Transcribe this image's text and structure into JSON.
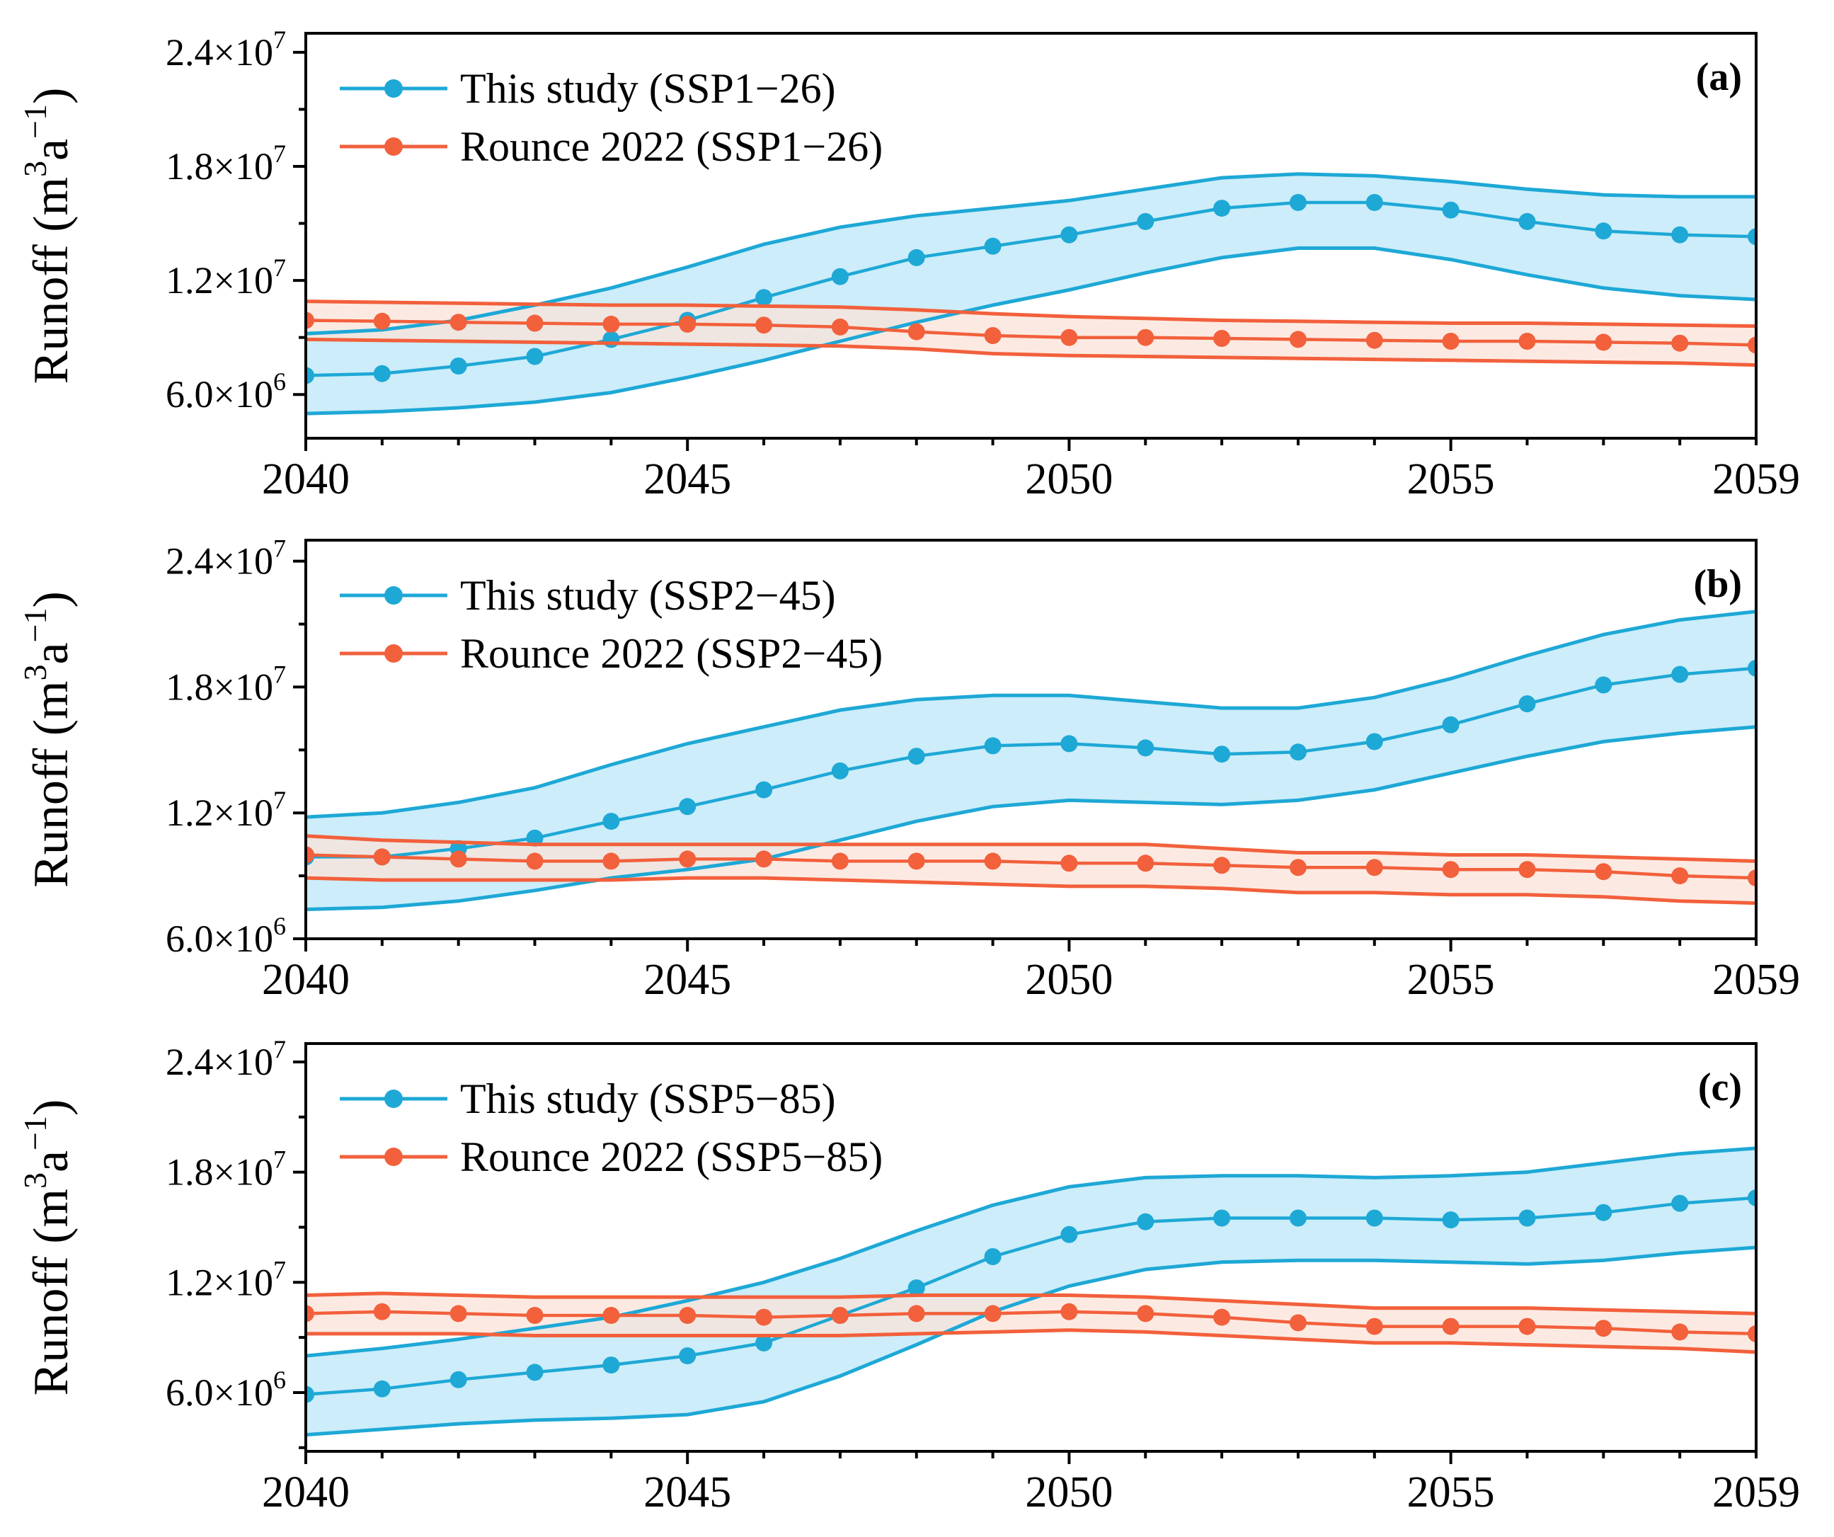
{
  "chart_data": [
    {
      "type": "line",
      "panel_label": "(a)",
      "ylabel": "Runoff",
      "ylabel_unit_base": "m",
      "ylabel_unit_exp": "3",
      "ylabel_unit_base2": "a",
      "ylabel_unit_exp2": "−1",
      "xlim": [
        2040,
        2059
      ],
      "ylim": [
        3700000,
        25000000
      ],
      "yticks": [
        {
          "value": 6000000,
          "mant": "6.0×10",
          "exp": "6"
        },
        {
          "value": 12000000,
          "mant": "1.2×10",
          "exp": "7"
        },
        {
          "value": 18000000,
          "mant": "1.8×10",
          "exp": "7"
        },
        {
          "value": 24000000,
          "mant": "2.4×10",
          "exp": "7"
        }
      ],
      "xticks": [
        2040,
        2045,
        2050,
        2055,
        2059
      ],
      "legend_position": "top-left",
      "series": [
        {
          "name": "This study (SSP1−26)",
          "color": "#1ea8d6",
          "fill": "#c9ecf9",
          "x": [
            2040,
            2041,
            2042,
            2043,
            2044,
            2045,
            2046,
            2047,
            2048,
            2049,
            2050,
            2051,
            2052,
            2053,
            2054,
            2055,
            2056,
            2057,
            2058,
            2059
          ],
          "y": [
            7000000,
            7100000,
            7500000,
            8000000,
            8900000,
            9900000,
            11100000,
            12200000,
            13200000,
            13800000,
            14400000,
            15100000,
            15800000,
            16100000,
            16100000,
            15700000,
            15100000,
            14600000,
            14400000,
            14300000
          ],
          "upper": [
            9200000,
            9400000,
            9900000,
            10700000,
            11600000,
            12700000,
            13900000,
            14800000,
            15400000,
            15800000,
            16200000,
            16800000,
            17400000,
            17600000,
            17500000,
            17200000,
            16800000,
            16500000,
            16400000,
            16400000
          ],
          "lower": [
            5000000,
            5100000,
            5300000,
            5600000,
            6100000,
            6900000,
            7800000,
            8800000,
            9800000,
            10700000,
            11500000,
            12400000,
            13200000,
            13700000,
            13700000,
            13100000,
            12300000,
            11600000,
            11200000,
            11000000
          ]
        },
        {
          "name": "Rounce 2022 (SSP1−26)",
          "color": "#f2603c",
          "fill": "#fbe3d8",
          "x": [
            2040,
            2041,
            2042,
            2043,
            2044,
            2045,
            2046,
            2047,
            2048,
            2049,
            2050,
            2051,
            2052,
            2053,
            2054,
            2055,
            2056,
            2057,
            2058,
            2059
          ],
          "y": [
            9900000,
            9850000,
            9800000,
            9750000,
            9700000,
            9700000,
            9650000,
            9550000,
            9300000,
            9100000,
            9000000,
            9000000,
            8950000,
            8900000,
            8850000,
            8800000,
            8800000,
            8750000,
            8700000,
            8600000
          ],
          "upper": [
            10900000,
            10850000,
            10800000,
            10750000,
            10700000,
            10700000,
            10650000,
            10600000,
            10450000,
            10250000,
            10100000,
            10000000,
            9900000,
            9850000,
            9800000,
            9750000,
            9750000,
            9700000,
            9650000,
            9600000
          ],
          "lower": [
            8900000,
            8850000,
            8800000,
            8750000,
            8700000,
            8650000,
            8600000,
            8550000,
            8400000,
            8150000,
            8050000,
            8000000,
            7950000,
            7900000,
            7850000,
            7800000,
            7750000,
            7700000,
            7650000,
            7550000
          ]
        }
      ]
    },
    {
      "type": "line",
      "panel_label": "(b)",
      "ylabel": "Runoff",
      "ylabel_unit_base": "m",
      "ylabel_unit_exp": "3",
      "ylabel_unit_base2": "a",
      "ylabel_unit_exp2": "−1",
      "xlim": [
        2040,
        2059
      ],
      "ylim": [
        6000000,
        25000000
      ],
      "yticks": [
        {
          "value": 6000000,
          "mant": "6.0×10",
          "exp": "6"
        },
        {
          "value": 12000000,
          "mant": "1.2×10",
          "exp": "7"
        },
        {
          "value": 18000000,
          "mant": "1.8×10",
          "exp": "7"
        },
        {
          "value": 24000000,
          "mant": "2.4×10",
          "exp": "7"
        }
      ],
      "xticks": [
        2040,
        2045,
        2050,
        2055,
        2059
      ],
      "legend_position": "top-left",
      "series": [
        {
          "name": "This study (SSP2−45)",
          "color": "#1ea8d6",
          "fill": "#c9ecf9",
          "x": [
            2040,
            2041,
            2042,
            2043,
            2044,
            2045,
            2046,
            2047,
            2048,
            2049,
            2050,
            2051,
            2052,
            2053,
            2054,
            2055,
            2056,
            2057,
            2058,
            2059
          ],
          "y": [
            9900000,
            9900000,
            10300000,
            10800000,
            11600000,
            12300000,
            13100000,
            14000000,
            14700000,
            15200000,
            15300000,
            15100000,
            14800000,
            14900000,
            15400000,
            16200000,
            17200000,
            18100000,
            18600000,
            18900000
          ],
          "upper": [
            11800000,
            12000000,
            12500000,
            13200000,
            14300000,
            15300000,
            16100000,
            16900000,
            17400000,
            17600000,
            17600000,
            17300000,
            17000000,
            17000000,
            17500000,
            18400000,
            19500000,
            20500000,
            21200000,
            21600000
          ],
          "lower": [
            7400000,
            7500000,
            7800000,
            8300000,
            8900000,
            9300000,
            9800000,
            10700000,
            11600000,
            12300000,
            12600000,
            12500000,
            12400000,
            12600000,
            13100000,
            13900000,
            14700000,
            15400000,
            15800000,
            16100000
          ]
        },
        {
          "name": "Rounce 2022 (SSP2−45)",
          "color": "#f2603c",
          "fill": "#fbe3d8",
          "x": [
            2040,
            2041,
            2042,
            2043,
            2044,
            2045,
            2046,
            2047,
            2048,
            2049,
            2050,
            2051,
            2052,
            2053,
            2054,
            2055,
            2056,
            2057,
            2058,
            2059
          ],
          "y": [
            10000000,
            9900000,
            9800000,
            9700000,
            9700000,
            9800000,
            9800000,
            9700000,
            9700000,
            9700000,
            9600000,
            9600000,
            9500000,
            9400000,
            9400000,
            9300000,
            9300000,
            9200000,
            9000000,
            8900000
          ],
          "upper": [
            10900000,
            10700000,
            10600000,
            10500000,
            10500000,
            10500000,
            10500000,
            10500000,
            10500000,
            10500000,
            10500000,
            10500000,
            10300000,
            10100000,
            10100000,
            10000000,
            10000000,
            9900000,
            9800000,
            9700000
          ],
          "lower": [
            8900000,
            8800000,
            8800000,
            8800000,
            8800000,
            8900000,
            8900000,
            8800000,
            8700000,
            8600000,
            8500000,
            8500000,
            8400000,
            8200000,
            8200000,
            8100000,
            8100000,
            8000000,
            7800000,
            7700000
          ]
        }
      ]
    },
    {
      "type": "line",
      "panel_label": "(c)",
      "ylabel": "Runoff",
      "ylabel_unit_base": "m",
      "ylabel_unit_exp": "3",
      "ylabel_unit_base2": "a",
      "ylabel_unit_exp2": "−1",
      "xlim": [
        2040,
        2059
      ],
      "ylim": [
        2800000,
        25000000
      ],
      "yticks": [
        {
          "value": 6000000,
          "mant": "6.0×10",
          "exp": "6"
        },
        {
          "value": 12000000,
          "mant": "1.2×10",
          "exp": "7"
        },
        {
          "value": 18000000,
          "mant": "1.8×10",
          "exp": "7"
        },
        {
          "value": 24000000,
          "mant": "2.4×10",
          "exp": "7"
        }
      ],
      "xticks": [
        2040,
        2045,
        2050,
        2055,
        2059
      ],
      "legend_position": "top-left",
      "series": [
        {
          "name": "This study (SSP5−85)",
          "color": "#1ea8d6",
          "fill": "#c9ecf9",
          "x": [
            2040,
            2041,
            2042,
            2043,
            2044,
            2045,
            2046,
            2047,
            2048,
            2049,
            2050,
            2051,
            2052,
            2053,
            2054,
            2055,
            2056,
            2057,
            2058,
            2059
          ],
          "y": [
            5900000,
            6200000,
            6700000,
            7100000,
            7500000,
            8000000,
            8700000,
            10200000,
            11700000,
            13400000,
            14600000,
            15300000,
            15500000,
            15500000,
            15500000,
            15400000,
            15500000,
            15800000,
            16300000,
            16600000
          ],
          "upper": [
            8000000,
            8400000,
            8900000,
            9500000,
            10100000,
            11000000,
            12000000,
            13300000,
            14800000,
            16200000,
            17200000,
            17700000,
            17800000,
            17800000,
            17700000,
            17800000,
            18000000,
            18500000,
            19000000,
            19300000
          ],
          "lower": [
            3700000,
            4000000,
            4300000,
            4500000,
            4600000,
            4800000,
            5500000,
            6900000,
            8600000,
            10400000,
            11800000,
            12700000,
            13100000,
            13200000,
            13200000,
            13100000,
            13000000,
            13200000,
            13600000,
            13900000
          ]
        },
        {
          "name": "Rounce 2022 (SSP5−85)",
          "color": "#f2603c",
          "fill": "#fbe3d8",
          "x": [
            2040,
            2041,
            2042,
            2043,
            2044,
            2045,
            2046,
            2047,
            2048,
            2049,
            2050,
            2051,
            2052,
            2053,
            2054,
            2055,
            2056,
            2057,
            2058,
            2059
          ],
          "y": [
            10300000,
            10400000,
            10300000,
            10200000,
            10200000,
            10200000,
            10100000,
            10200000,
            10300000,
            10300000,
            10400000,
            10300000,
            10100000,
            9800000,
            9600000,
            9600000,
            9600000,
            9500000,
            9300000,
            9200000
          ],
          "upper": [
            11300000,
            11400000,
            11300000,
            11200000,
            11200000,
            11200000,
            11200000,
            11200000,
            11300000,
            11300000,
            11300000,
            11200000,
            11000000,
            10800000,
            10600000,
            10600000,
            10600000,
            10500000,
            10400000,
            10300000
          ],
          "lower": [
            9200000,
            9200000,
            9200000,
            9100000,
            9100000,
            9100000,
            9100000,
            9100000,
            9200000,
            9300000,
            9400000,
            9300000,
            9100000,
            8900000,
            8700000,
            8700000,
            8600000,
            8500000,
            8400000,
            8200000
          ]
        }
      ]
    }
  ]
}
